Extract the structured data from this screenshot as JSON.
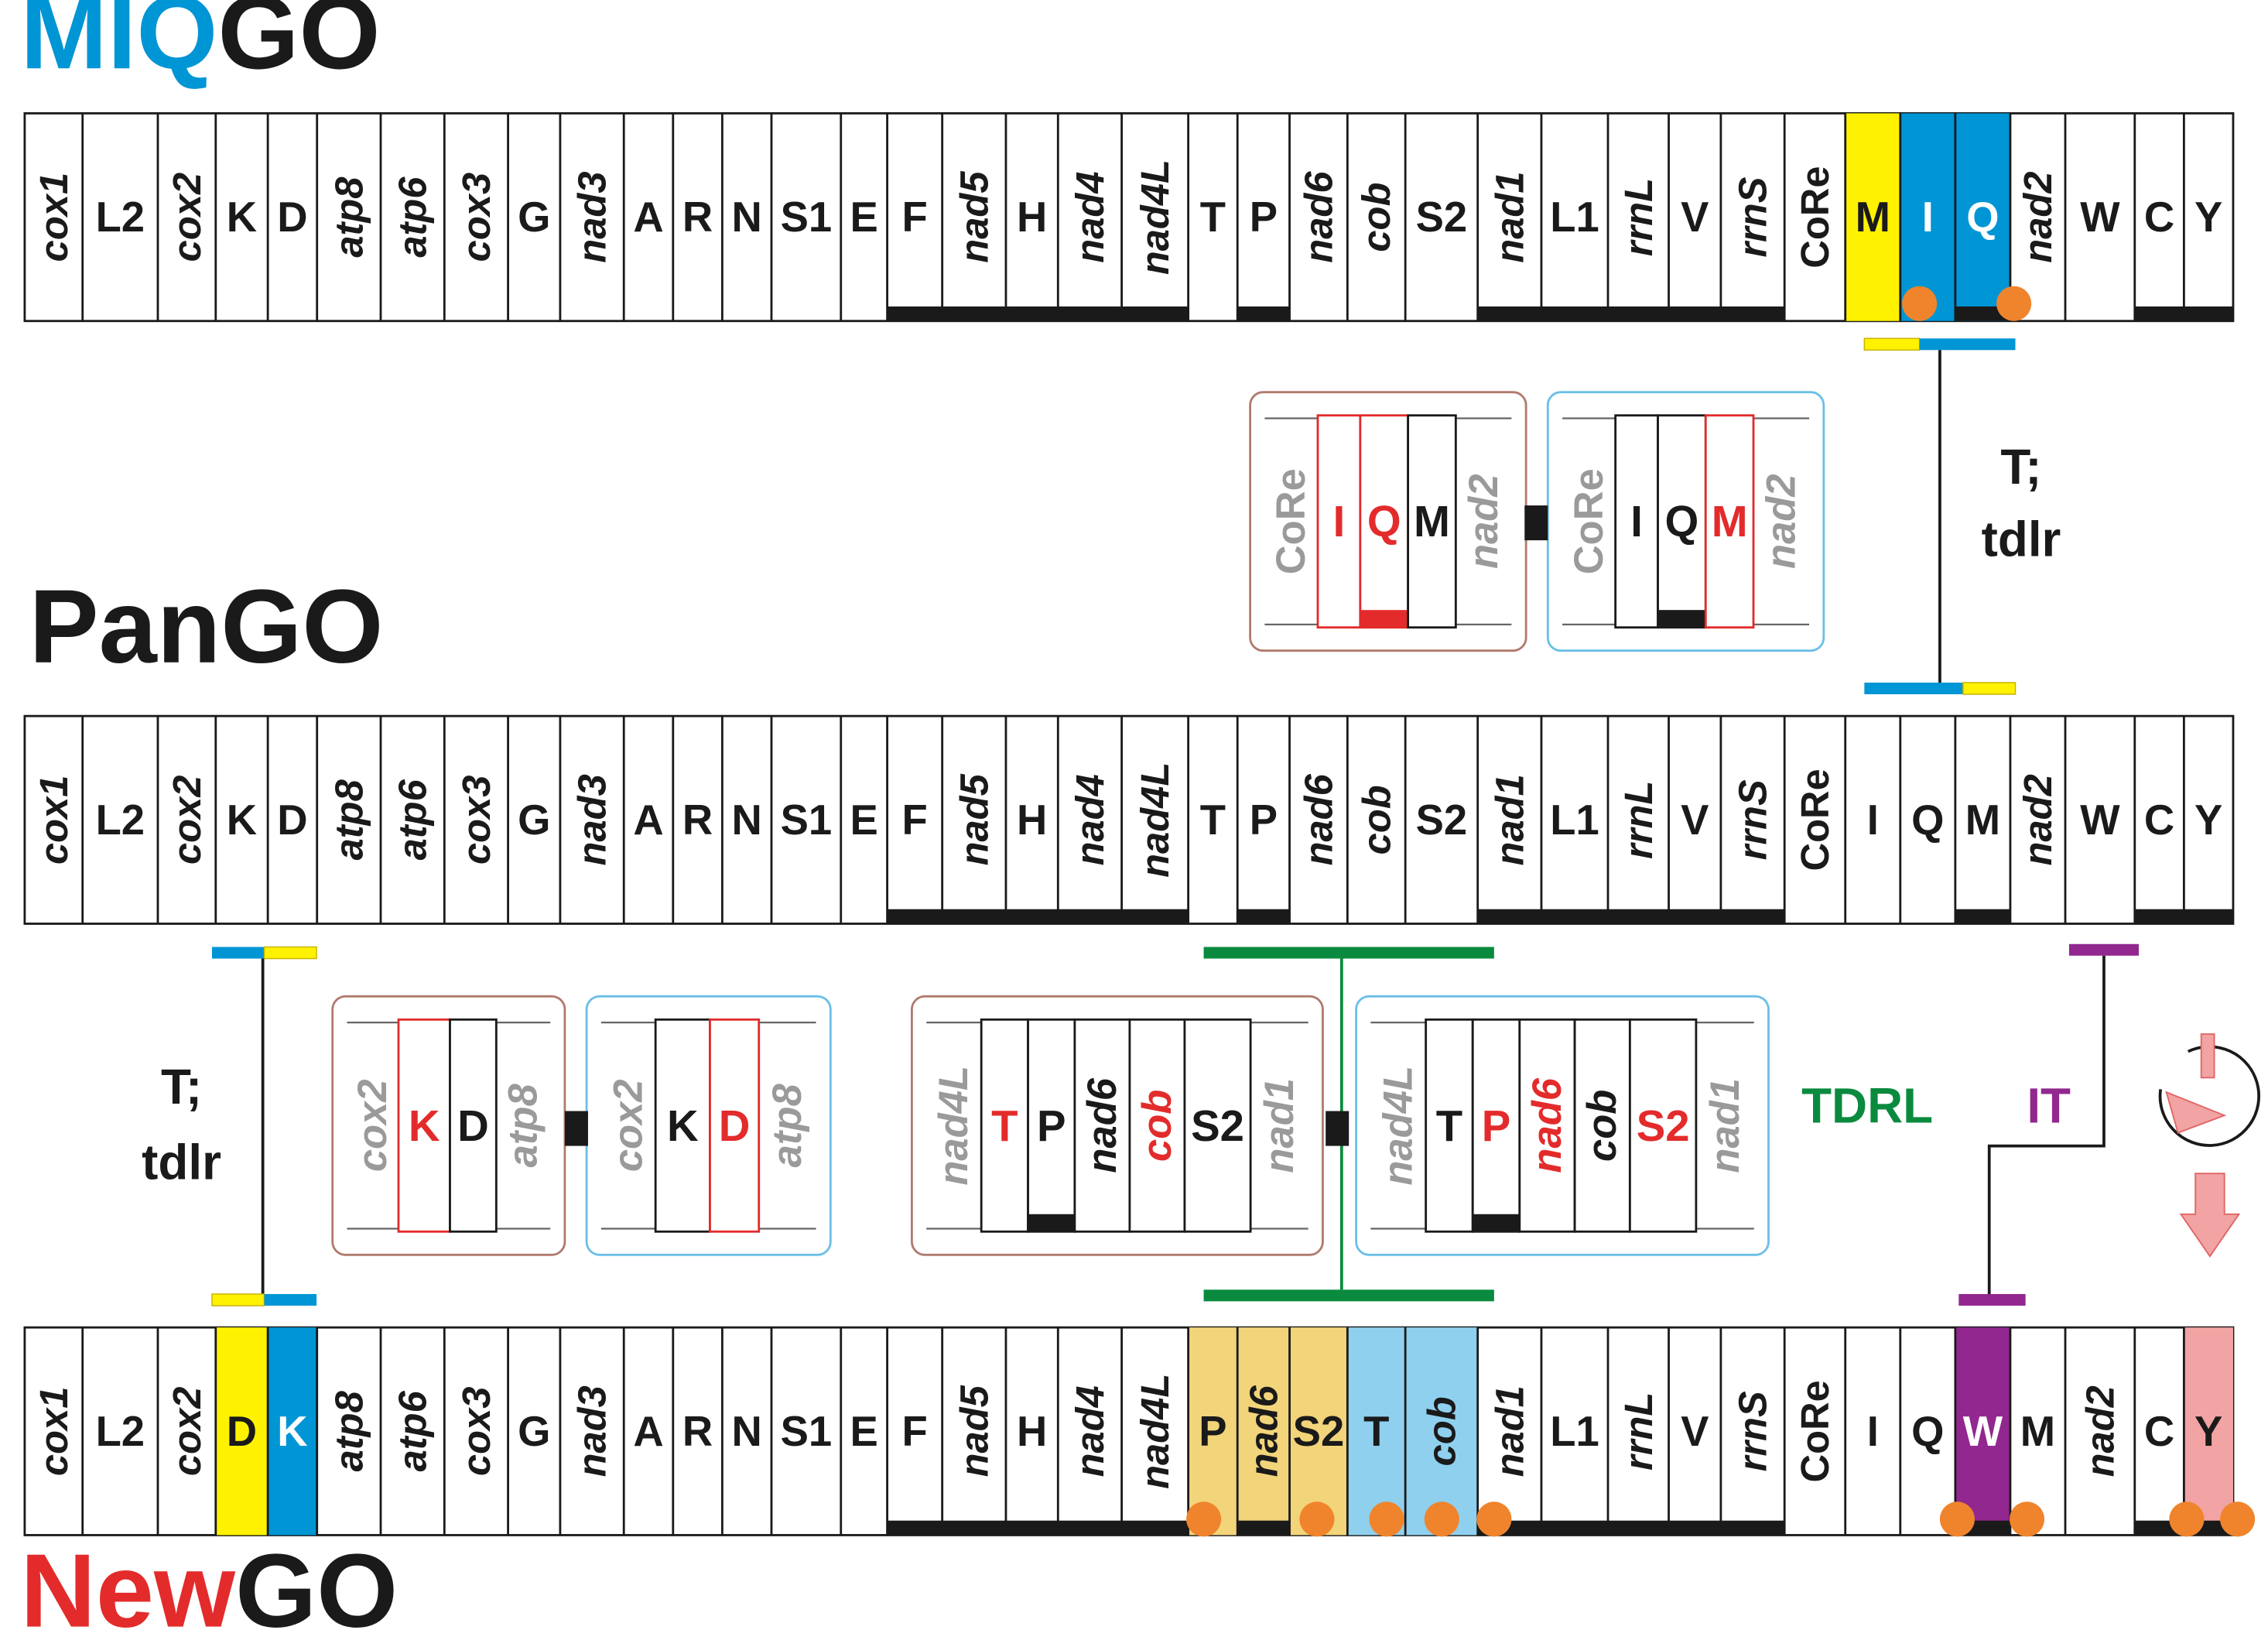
{
  "titles": {
    "miq_prefix": "MIQ",
    "miq_suffix": "GO",
    "pan": "PanGO",
    "new_prefix": "New",
    "new_suffix": "GO"
  },
  "colors": {
    "yellow": "#fff200",
    "blue": "#0095d4",
    "red": "#e32b2b",
    "green": "#0a8a3e",
    "purple": "#92278f",
    "orange": "#f0842c",
    "tan": "#f2d47a",
    "lightblue": "#8fd0ee",
    "pink": "#f2a3a3",
    "gray": "#9a9a9a",
    "black": "#1a1a1a"
  },
  "genes": {
    "miqgo": [
      "cox1",
      "L2",
      "cox2",
      "K",
      "D",
      "atp8",
      "atp6",
      "cox3",
      "G",
      "nad3",
      "A",
      "R",
      "N",
      "S1",
      "E",
      "F",
      "nad5",
      "H",
      "nad4",
      "nad4L",
      "T",
      "P",
      "nad6",
      "cob",
      "S2",
      "nad1",
      "L1",
      "rrnL",
      "V",
      "rrnS",
      "CoRe",
      "M",
      "I",
      "Q",
      "nad2",
      "W",
      "C",
      "Y"
    ],
    "pango": [
      "cox1",
      "L2",
      "cox2",
      "K",
      "D",
      "atp8",
      "atp6",
      "cox3",
      "G",
      "nad3",
      "A",
      "R",
      "N",
      "S1",
      "E",
      "F",
      "nad5",
      "H",
      "nad4",
      "nad4L",
      "T",
      "P",
      "nad6",
      "cob",
      "S2",
      "nad1",
      "L1",
      "rrnL",
      "V",
      "rrnS",
      "CoRe",
      "I",
      "Q",
      "M",
      "nad2",
      "W",
      "C",
      "Y"
    ],
    "newgo": [
      "cox1",
      "L2",
      "cox2",
      "D",
      "K",
      "atp8",
      "atp6",
      "cox3",
      "G",
      "nad3",
      "A",
      "R",
      "N",
      "S1",
      "E",
      "F",
      "nad5",
      "H",
      "nad4",
      "nad4L",
      "P",
      "nad6",
      "S2",
      "T",
      "cob",
      "nad1",
      "L1",
      "rrnL",
      "V",
      "rrnS",
      "CoRe",
      "I",
      "Q",
      "W",
      "M",
      "nad2",
      "C",
      "Y"
    ]
  },
  "events": {
    "t_tdlr_top_line1": "T;",
    "t_tdlr_top_line2": "tdlr",
    "t_tdlr_left_line1": "T;",
    "t_tdlr_left_line2": "tdlr",
    "tdrl": "TDRL",
    "it": "IT"
  },
  "insets": {
    "iqm_before": [
      "CoRe",
      "I",
      "Q",
      "M",
      "nad2"
    ],
    "iqm_after": [
      "CoRe",
      "I",
      "Q",
      "M",
      "nad2"
    ],
    "kd_before": [
      "cox2",
      "K",
      "D",
      "atp8"
    ],
    "kd_after": [
      "cox2",
      "K",
      "D",
      "atp8"
    ],
    "tp_before": [
      "nad4L",
      "T",
      "P",
      "nad6",
      "cob",
      "S2",
      "nad1"
    ],
    "tp_after": [
      "nad4L",
      "T",
      "P",
      "nad6",
      "cob",
      "S2",
      "nad1"
    ]
  },
  "legend_icons": [
    "inversion-rotation-icon",
    "translocation-arrow-icon"
  ]
}
